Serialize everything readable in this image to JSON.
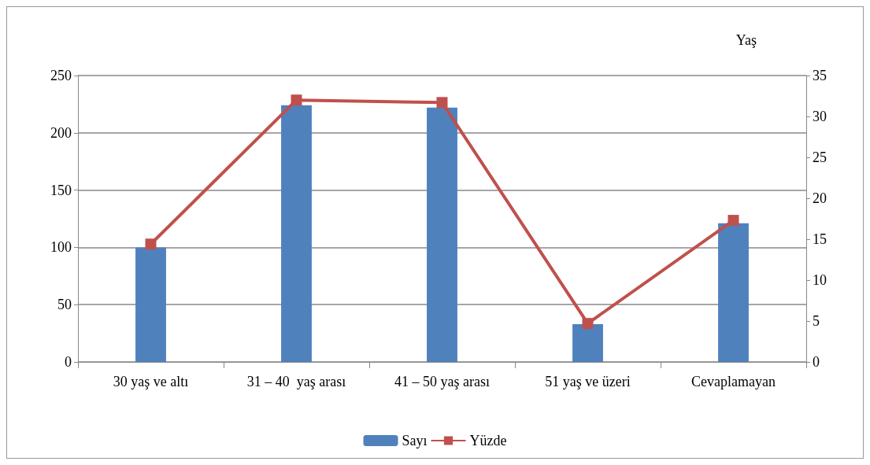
{
  "chart_data": {
    "type": "bar",
    "title": "Yaş",
    "categories": [
      "30 yaş ve altı",
      "31 – 40  yaş arası",
      "41 – 50 yaş arası",
      "51 yaş ve üzeri",
      "Cevaplamayan"
    ],
    "series": [
      {
        "name": "Sayı",
        "color": "#4f81bd",
        "values": [
          100,
          224,
          222,
          33,
          121
        ]
      },
      {
        "name": "Yüzde",
        "type": "line",
        "axis": "y2",
        "color": "#c0504d",
        "marker": "square",
        "values": [
          14.4,
          32.0,
          31.7,
          4.7,
          17.3
        ]
      }
    ],
    "ylim": [
      0,
      250
    ],
    "yticks": [
      0,
      50,
      100,
      150,
      200,
      250
    ],
    "y2lim": [
      0,
      35
    ],
    "y2ticks": [
      0,
      5,
      10,
      15,
      20,
      25,
      30,
      35
    ],
    "grid": "y",
    "legend": "bottom"
  }
}
